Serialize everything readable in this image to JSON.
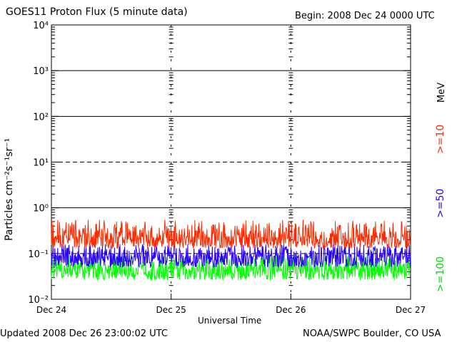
{
  "header": {
    "title": "GOES11 Proton Flux (5 minute data)",
    "begin": "Begin: 2008 Dec 24 0000 UTC"
  },
  "footer": {
    "updated": "Updated 2008 Dec 26 23:00:02 UTC",
    "source": "NOAA/SWPC Boulder, CO USA"
  },
  "legend": {
    "unit": "MeV",
    "items": [
      {
        "label": ">=10",
        "color": "#ff2a00"
      },
      {
        "label": ">=50",
        "color": "#2a00ff"
      },
      {
        "label": ">=100",
        "color": "#00ff00"
      }
    ]
  },
  "chart_data": {
    "type": "line",
    "title": "GOES11 Proton Flux (5 minute data)",
    "xlabel": "Universal Time",
    "ylabel": "Particles cm⁻²s⁻¹sr⁻¹",
    "y_scale": "log",
    "ylim": [
      0.01,
      10000
    ],
    "y_ticks": [
      {
        "value": 0.01,
        "label": "10⁻²"
      },
      {
        "value": 0.1,
        "label": "10⁻¹"
      },
      {
        "value": 1,
        "label": "10⁰"
      },
      {
        "value": 10,
        "label": "10¹"
      },
      {
        "value": 100,
        "label": "10²"
      },
      {
        "value": 1000,
        "label": "10³"
      },
      {
        "value": 10000,
        "label": "10⁴"
      }
    ],
    "x_ticks": [
      "Dec 24",
      "Dec 25",
      "Dec 26",
      "Dec 27"
    ],
    "xlim_days": [
      0,
      3
    ],
    "series": [
      {
        "name": ">=10 MeV",
        "color": "#ff2a00",
        "baseline": 0.22,
        "spread": [
          0.13,
          0.55
        ]
      },
      {
        "name": ">=50 MeV",
        "color": "#2a00ff",
        "baseline": 0.085,
        "spread": [
          0.05,
          0.16
        ]
      },
      {
        "name": ">=100 MeV",
        "color": "#00ff00",
        "baseline": 0.045,
        "spread": [
          0.026,
          0.09
        ]
      }
    ],
    "reference_lines": {
      "solid": [
        1,
        100,
        1000
      ],
      "dashed": [
        0.1,
        10
      ]
    },
    "grid": true
  }
}
